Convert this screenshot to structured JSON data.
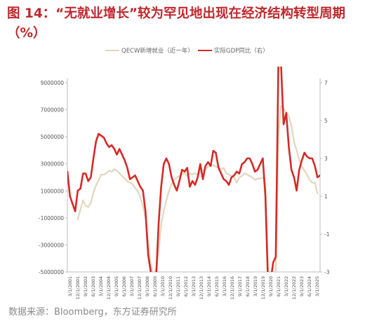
{
  "title_line1": "图 14：“无就业增长”较为罕见地出现在经济结构转型周期",
  "title_line2": "（%）",
  "source": "数据来源：Bloomberg，东方证券研究所",
  "colors": {
    "title": "#c0282d",
    "qcew": "#e2d6bd",
    "gdp": "#d42a27"
  },
  "chart_data": {
    "type": "line",
    "title": "",
    "legend_position": "top",
    "grid": false,
    "y_left": {
      "lim": [
        -5000000,
        9000000
      ],
      "ticks": [
        "9000000",
        "7000000",
        "5000000",
        "3000000",
        "1000000",
        "-1000000",
        "-3000000",
        "-5000000"
      ]
    },
    "y_right": {
      "lim": [
        -3,
        7
      ],
      "ticks": [
        "7",
        "5",
        "3",
        "1",
        "-1",
        "-3"
      ]
    },
    "x_ticks": [
      "3/1/2001",
      "12/1/2001",
      "9/1/2002",
      "6/1/2003",
      "3/1/2004",
      "12/1/2004",
      "9/1/2005",
      "6/1/2006",
      "3/1/2007",
      "12/1/2007",
      "9/1/2008",
      "6/1/2009",
      "3/1/2010",
      "12/1/2010",
      "9/1/2011",
      "6/1/2012",
      "3/1/2013",
      "12/1/2013",
      "9/1/2014",
      "6/1/2015",
      "3/1/2016",
      "12/1/2016",
      "9/1/2017",
      "6/1/2018",
      "3/1/2019",
      "12/1/2019",
      "9/1/2020",
      "6/1/2021",
      "3/1/2022",
      "12/1/2022",
      "9/1/2023",
      "6/1/2024",
      "3/1/2025"
    ],
    "series": [
      {
        "name": "QECW新增就业（近一年）",
        "axis": "left",
        "points": [
          [
            2002.0,
            -1100000
          ],
          [
            2002.25,
            -400000
          ],
          [
            2002.5,
            300000
          ],
          [
            2002.75,
            -100000
          ],
          [
            2003.0,
            -200000
          ],
          [
            2003.25,
            100000
          ],
          [
            2003.5,
            900000
          ],
          [
            2003.75,
            1400000
          ],
          [
            2004.0,
            1800000
          ],
          [
            2004.25,
            2200000
          ],
          [
            2004.5,
            2200000
          ],
          [
            2004.75,
            2300000
          ],
          [
            2005.0,
            2500000
          ],
          [
            2005.25,
            2400000
          ],
          [
            2005.5,
            2600000
          ],
          [
            2005.75,
            2500000
          ],
          [
            2006.0,
            2300000
          ],
          [
            2006.25,
            2100000
          ],
          [
            2006.5,
            1900000
          ],
          [
            2006.75,
            1700000
          ],
          [
            2007.0,
            1600000
          ],
          [
            2007.25,
            1500000
          ],
          [
            2007.5,
            1200000
          ],
          [
            2007.75,
            1000000
          ],
          [
            2008.0,
            500000
          ],
          [
            2008.25,
            -100000
          ],
          [
            2008.5,
            -1000000
          ],
          [
            2008.75,
            -2800000
          ],
          [
            2009.0,
            -4500000
          ],
          [
            2009.25,
            -5200000
          ],
          [
            2009.5,
            -4800000
          ],
          [
            2009.75,
            -3500000
          ],
          [
            2010.0,
            -1500000
          ],
          [
            2010.25,
            -500000
          ],
          [
            2010.5,
            300000
          ],
          [
            2010.75,
            1000000
          ],
          [
            2011.0,
            1500000
          ],
          [
            2011.25,
            1800000
          ],
          [
            2011.5,
            2000000
          ],
          [
            2011.75,
            2100000
          ],
          [
            2012.0,
            2200000
          ],
          [
            2012.25,
            2300000
          ],
          [
            2012.5,
            2100000
          ],
          [
            2012.75,
            2300000
          ],
          [
            2013.0,
            2200000
          ],
          [
            2013.25,
            2300000
          ],
          [
            2013.5,
            2200000
          ],
          [
            2013.75,
            2400000
          ],
          [
            2014.0,
            2500000
          ],
          [
            2014.25,
            2600000
          ],
          [
            2014.5,
            2800000
          ],
          [
            2014.75,
            2900000
          ],
          [
            2015.0,
            2900000
          ],
          [
            2015.25,
            2800000
          ],
          [
            2015.5,
            2700000
          ],
          [
            2015.75,
            2600000
          ],
          [
            2016.0,
            2700000
          ],
          [
            2016.25,
            2300000
          ],
          [
            2016.5,
            2200000
          ],
          [
            2016.75,
            2100000
          ],
          [
            2017.0,
            2000000
          ],
          [
            2017.25,
            1600000
          ],
          [
            2017.5,
            2000000
          ],
          [
            2017.75,
            2100000
          ],
          [
            2018.0,
            2300000
          ],
          [
            2018.25,
            2200000
          ],
          [
            2018.5,
            2100000
          ],
          [
            2018.75,
            2000000
          ],
          [
            2019.0,
            1800000
          ],
          [
            2019.25,
            1900000
          ],
          [
            2019.5,
            1900000
          ],
          [
            2019.75,
            2000000
          ],
          [
            2020.0,
            1500000
          ],
          [
            2020.25,
            -5000000
          ],
          [
            2020.5,
            -5000000
          ],
          [
            2020.75,
            -5000000
          ],
          [
            2021.0,
            -5000000
          ],
          [
            2021.25,
            5000000
          ],
          [
            2021.5,
            7300000
          ],
          [
            2021.75,
            7100000
          ],
          [
            2022.0,
            6800000
          ],
          [
            2022.25,
            6500000
          ],
          [
            2022.5,
            5800000
          ],
          [
            2022.75,
            4600000
          ],
          [
            2023.0,
            4000000
          ],
          [
            2023.25,
            3300000
          ],
          [
            2023.5,
            2800000
          ],
          [
            2023.75,
            2500000
          ],
          [
            2024.0,
            2200000
          ],
          [
            2024.25,
            1800000
          ],
          [
            2024.5,
            1600000
          ],
          [
            2024.75,
            1600000
          ],
          [
            2025.0,
            800000
          ]
        ]
      },
      {
        "name": "实际GDP同比（右）",
        "axis": "right",
        "points": [
          [
            2001.0,
            2.3
          ],
          [
            2001.25,
            1.0
          ],
          [
            2001.5,
            0.6
          ],
          [
            2001.75,
            0.2
          ],
          [
            2002.0,
            1.3
          ],
          [
            2002.25,
            1.4
          ],
          [
            2002.5,
            2.2
          ],
          [
            2002.75,
            2.2
          ],
          [
            2003.0,
            1.8
          ],
          [
            2003.25,
            2.0
          ],
          [
            2003.5,
            3.0
          ],
          [
            2003.75,
            3.9
          ],
          [
            2004.0,
            4.3
          ],
          [
            2004.25,
            4.2
          ],
          [
            2004.5,
            4.1
          ],
          [
            2004.75,
            3.8
          ],
          [
            2005.0,
            3.6
          ],
          [
            2005.25,
            3.7
          ],
          [
            2005.5,
            3.5
          ],
          [
            2005.75,
            3.2
          ],
          [
            2006.0,
            3.5
          ],
          [
            2006.25,
            3.2
          ],
          [
            2006.5,
            2.9
          ],
          [
            2006.75,
            2.5
          ],
          [
            2007.0,
            1.9
          ],
          [
            2007.25,
            2.0
          ],
          [
            2007.5,
            2.1
          ],
          [
            2007.75,
            1.8
          ],
          [
            2008.0,
            1.5
          ],
          [
            2008.25,
            1.3
          ],
          [
            2008.5,
            0.2
          ],
          [
            2008.75,
            -2.1
          ],
          [
            2009.0,
            -3.0
          ],
          [
            2009.25,
            -3.2
          ],
          [
            2009.5,
            -3.5
          ],
          [
            2009.75,
            -0.5
          ],
          [
            2010.0,
            1.5
          ],
          [
            2010.25,
            2.7
          ],
          [
            2010.5,
            3.0
          ],
          [
            2010.75,
            2.7
          ],
          [
            2011.0,
            2.0
          ],
          [
            2011.25,
            1.6
          ],
          [
            2011.5,
            1.3
          ],
          [
            2011.75,
            1.8
          ],
          [
            2012.0,
            2.4
          ],
          [
            2012.25,
            2.3
          ],
          [
            2012.5,
            2.5
          ],
          [
            2012.75,
            1.5
          ],
          [
            2013.0,
            1.8
          ],
          [
            2013.25,
            1.6
          ],
          [
            2013.5,
            2.0
          ],
          [
            2013.75,
            2.7
          ],
          [
            2014.0,
            1.9
          ],
          [
            2014.25,
            2.6
          ],
          [
            2014.5,
            2.8
          ],
          [
            2014.75,
            2.6
          ],
          [
            2015.0,
            3.4
          ],
          [
            2015.25,
            3.3
          ],
          [
            2015.5,
            2.5
          ],
          [
            2015.75,
            2.2
          ],
          [
            2016.0,
            1.9
          ],
          [
            2016.25,
            1.8
          ],
          [
            2016.5,
            1.6
          ],
          [
            2016.75,
            2.0
          ],
          [
            2017.0,
            2.1
          ],
          [
            2017.25,
            2.3
          ],
          [
            2017.5,
            2.2
          ],
          [
            2017.75,
            2.7
          ],
          [
            2018.0,
            2.8
          ],
          [
            2018.25,
            3.0
          ],
          [
            2018.5,
            3.0
          ],
          [
            2018.75,
            2.7
          ],
          [
            2019.0,
            2.3
          ],
          [
            2019.25,
            2.4
          ],
          [
            2019.5,
            2.7
          ],
          [
            2019.75,
            3.0
          ],
          [
            2020.0,
            1.0
          ],
          [
            2020.25,
            -3.5
          ],
          [
            2020.5,
            -3.5
          ],
          [
            2020.75,
            -2.5
          ],
          [
            2021.0,
            -2.2
          ],
          [
            2021.25,
            8.0
          ],
          [
            2021.5,
            8.0
          ],
          [
            2021.75,
            4.8
          ],
          [
            2022.0,
            5.4
          ],
          [
            2022.25,
            3.6
          ],
          [
            2022.5,
            2.4
          ],
          [
            2022.75,
            2.0
          ],
          [
            2023.0,
            1.3
          ],
          [
            2023.25,
            2.4
          ],
          [
            2023.5,
            2.9
          ],
          [
            2023.75,
            3.3
          ],
          [
            2024.0,
            3.1
          ],
          [
            2024.25,
            3.0
          ],
          [
            2024.5,
            3.0
          ],
          [
            2024.75,
            2.6
          ],
          [
            2025.0,
            2.0
          ],
          [
            2025.25,
            2.1
          ]
        ]
      }
    ]
  }
}
